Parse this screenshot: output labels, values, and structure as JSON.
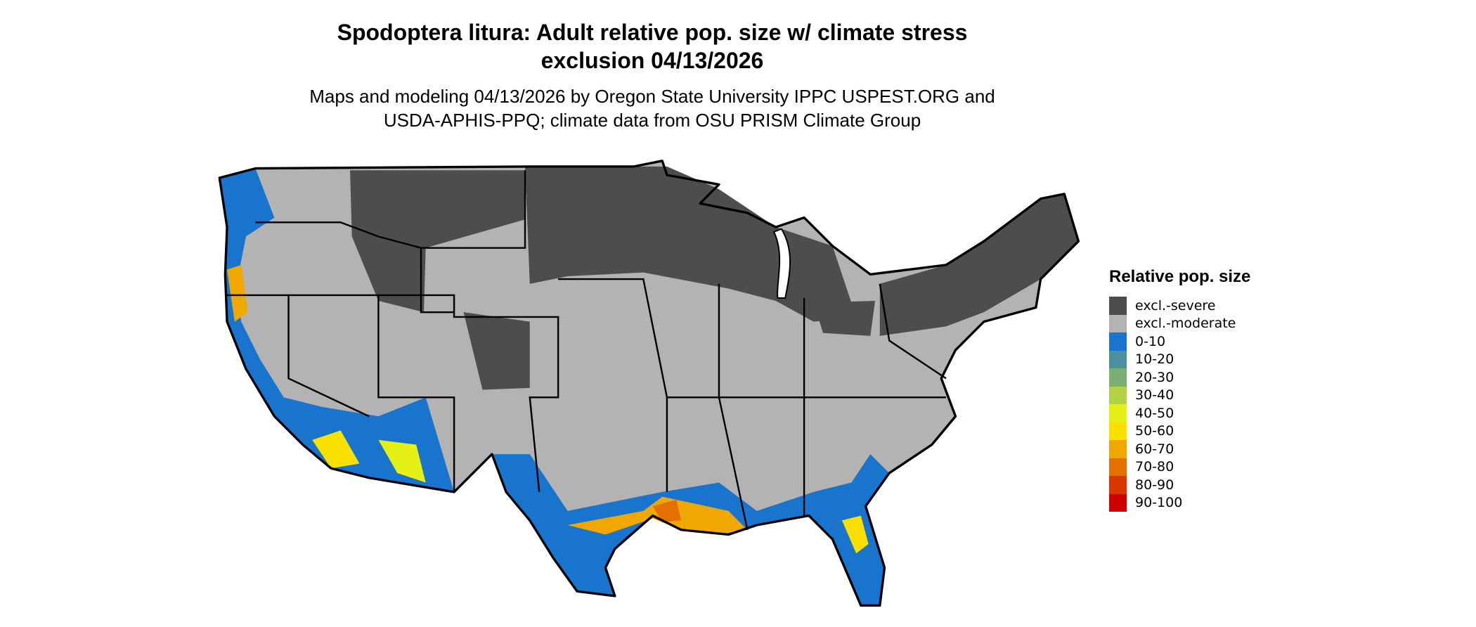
{
  "title": {
    "line1": "Spodoptera litura: Adult relative pop. size w/ climate stress",
    "line2": "exclusion 04/13/2026"
  },
  "subtitle": {
    "line1": "Maps and modeling 04/13/2026 by Oregon State University IPPC USPEST.ORG and",
    "line2": "USDA-APHIS-PPQ; climate data from OSU PRISM Climate Group"
  },
  "legend": {
    "title": "Relative pop. size",
    "items": [
      {
        "label": "excl.-severe",
        "color": "#4d4d4d"
      },
      {
        "label": "excl.-moderate",
        "color": "#b3b3b3"
      },
      {
        "label": "0-10",
        "color": "#1874cd"
      },
      {
        "label": "10-20",
        "color": "#4a919e"
      },
      {
        "label": "20-30",
        "color": "#7cad72"
      },
      {
        "label": "30-40",
        "color": "#b2d147"
      },
      {
        "label": "40-50",
        "color": "#e5f016"
      },
      {
        "label": "50-60",
        "color": "#f9e000"
      },
      {
        "label": "60-70",
        "color": "#f0a800"
      },
      {
        "label": "70-80",
        "color": "#e37000"
      },
      {
        "label": "80-90",
        "color": "#d83800"
      },
      {
        "label": "90-100",
        "color": "#cd0000"
      }
    ]
  }
}
